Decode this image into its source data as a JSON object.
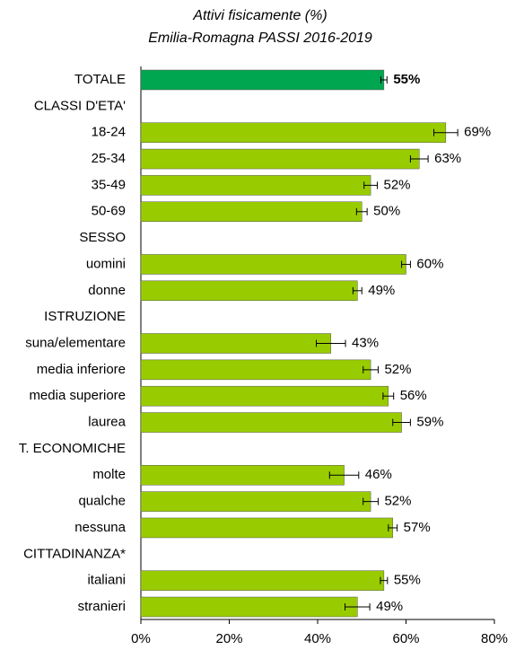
{
  "chart_data": {
    "type": "bar",
    "orientation": "horizontal",
    "title": "Attivi fisicamente (%)",
    "subtitle": "Emilia-Romagna PASSI 2016-2019",
    "categories": [
      "TOTALE",
      "CLASSI D'ETA'",
      "18-24",
      "25-34",
      "35-49",
      "50-69",
      "SESSO",
      "uomini",
      "donne",
      "ISTRUZIONE",
      "suna/elementare",
      "media inferiore",
      "media superiore",
      "laurea",
      "T. ECONOMICHE",
      "molte",
      "qualche",
      "nessuna",
      "CITTADINANZA*",
      "italiani",
      "stranieri"
    ],
    "values": [
      55,
      null,
      69,
      63,
      52,
      50,
      null,
      60,
      49,
      null,
      43,
      52,
      56,
      59,
      null,
      46,
      52,
      57,
      null,
      55,
      49
    ],
    "value_labels": [
      "55%",
      null,
      "69%",
      "63%",
      "52%",
      "50%",
      null,
      "60%",
      "49%",
      null,
      "43%",
      "52%",
      "56%",
      "59%",
      null,
      "46%",
      "52%",
      "57%",
      null,
      "55%",
      "49%"
    ],
    "errors": [
      0.7,
      null,
      2.7,
      2.0,
      1.5,
      1.2,
      null,
      1.0,
      1.0,
      null,
      3.3,
      1.7,
      1.2,
      2.0,
      null,
      3.3,
      1.7,
      1.0,
      null,
      0.8,
      2.8
    ],
    "colors": [
      "#00a650",
      null,
      "#99cc00",
      "#99cc00",
      "#99cc00",
      "#99cc00",
      null,
      "#99cc00",
      "#99cc00",
      null,
      "#99cc00",
      "#99cc00",
      "#99cc00",
      "#99cc00",
      null,
      "#99cc00",
      "#99cc00",
      "#99cc00",
      null,
      "#99cc00",
      "#99cc00"
    ],
    "xlim": [
      0,
      80
    ],
    "xticks": [
      {
        "value": 0,
        "label": "0%"
      },
      {
        "value": 20,
        "label": "20%"
      },
      {
        "value": 40,
        "label": "40%"
      },
      {
        "value": 60,
        "label": "60%"
      },
      {
        "value": 80,
        "label": "80%"
      }
    ]
  }
}
